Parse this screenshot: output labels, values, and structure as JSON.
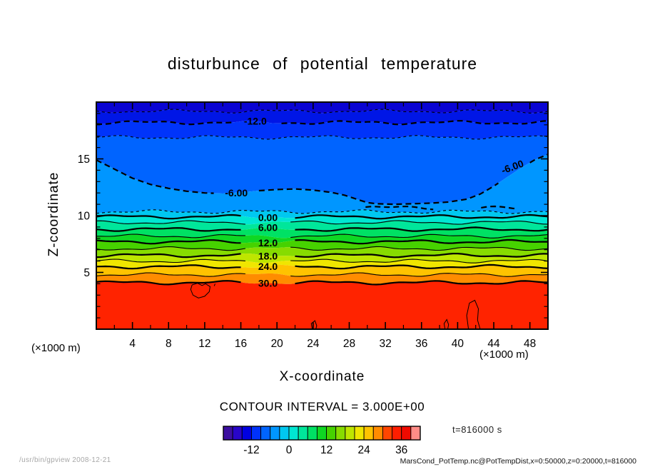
{
  "window": {
    "background": "#ffffff"
  },
  "footer": {
    "left": "/usr/bin/gpview  2008-12-21",
    "right": "MarsCond_PotTemp.nc@PotTempDist,x=0:50000,z=0:20000,t=816000"
  },
  "chart_data": {
    "type": "heatmap",
    "render": "filled-contour-map",
    "title": "disturbunce of potential temperature",
    "xlabel": "X-coordinate",
    "ylabel": "Z-coordinate",
    "x_unit_left": "(×1000 m)",
    "x_unit_right": "(×1000 m)",
    "time_label": "t=816000 s",
    "contour_interval": 3,
    "contour_interval_label": "CONTOUR INTERVAL = 3.000E+00",
    "xlim": [
      0,
      50
    ],
    "ylim": [
      0,
      20
    ],
    "xticks": [
      4,
      8,
      12,
      16,
      20,
      24,
      28,
      32,
      36,
      40,
      44,
      48
    ],
    "x_minor_step": 2,
    "yticks": [
      5,
      10,
      15
    ],
    "y_minor_step": 1,
    "contours": [
      {
        "value": -15,
        "z": 19.2,
        "thick": false,
        "dashed": true
      },
      {
        "value": -12,
        "z": 18.2,
        "thick": true,
        "dashed": true,
        "gaps": [
          [
            15.0,
            20.3
          ]
        ],
        "labels": [
          {
            "text": "-12.0",
            "x": 17.6
          }
        ]
      },
      {
        "value": -9,
        "z": 16.9,
        "thick": false,
        "dashed": true
      },
      {
        "value": -6,
        "thick": true,
        "dashed": true,
        "points": [
          [
            0,
            14.9
          ],
          [
            2,
            14.1
          ],
          [
            4,
            13.3
          ],
          [
            6,
            12.75
          ],
          [
            8,
            12.4
          ],
          [
            10,
            12.15
          ],
          [
            12,
            12.0
          ],
          [
            14,
            11.95
          ],
          [
            16,
            12.05
          ],
          [
            18,
            12.2
          ],
          [
            20,
            12.3
          ],
          [
            22,
            12.35
          ],
          [
            24,
            12.25
          ],
          [
            26,
            12.05
          ],
          [
            27.5,
            11.8
          ],
          [
            29,
            11.4
          ],
          [
            30,
            11.15
          ],
          [
            31,
            11.05
          ],
          [
            33,
            11.0
          ],
          [
            35,
            11.05
          ],
          [
            37,
            11.1
          ],
          [
            39,
            11.2
          ],
          [
            41,
            11.45
          ],
          [
            42.5,
            11.9
          ],
          [
            44,
            12.6
          ],
          [
            45.5,
            13.4
          ],
          [
            47,
            14.2
          ],
          [
            48.5,
            14.9
          ],
          [
            50,
            15.4
          ]
        ],
        "gaps": [
          [
            13.0,
            18.0
          ],
          [
            44.6,
            47.9
          ]
        ],
        "labels": [
          {
            "text": "-6.00",
            "x": 15.5
          },
          {
            "text": "-6.00",
            "x": 46.2,
            "angle": -20,
            "dz": 0.55
          }
        ]
      },
      {
        "value": -6.01,
        "z": 10.7,
        "thick": true,
        "dashed": true,
        "xrange": [
          29.8,
          37.6
        ]
      },
      {
        "value": -6.02,
        "z": 10.65,
        "thick": true,
        "dashed": true,
        "xrange": [
          42.6,
          46.6
        ]
      },
      {
        "value": -3,
        "z": 10.35,
        "thick": false,
        "dashed": true
      },
      {
        "value": 0,
        "z": 9.9,
        "thick": true,
        "dashed": false,
        "gaps": [
          [
            16.4,
            21.6
          ]
        ],
        "labels": [
          {
            "text": "0.00",
            "x": 19.0
          }
        ]
      },
      {
        "value": 3,
        "z": 9.4,
        "thick": false,
        "dashed": false,
        "gaps": [
          [
            16.6,
            21.4
          ]
        ]
      },
      {
        "value": 6,
        "z": 8.8,
        "thick": true,
        "dashed": false,
        "gaps": [
          [
            16.4,
            21.6
          ]
        ],
        "labels": [
          {
            "text": "6.00",
            "x": 19.0
          }
        ]
      },
      {
        "value": 9,
        "z": 8.2,
        "thick": false,
        "dashed": false,
        "gaps": [
          [
            16.6,
            21.4
          ]
        ]
      },
      {
        "value": 12,
        "z": 7.7,
        "thick": true,
        "dashed": false,
        "gaps": [
          [
            16.4,
            21.6
          ]
        ],
        "labels": [
          {
            "text": "12.0",
            "x": 19.0
          }
        ]
      },
      {
        "value": 15,
        "z": 7.1,
        "thick": false,
        "dashed": false,
        "gaps": [
          [
            16.6,
            21.4
          ]
        ]
      },
      {
        "value": 18,
        "z": 6.5,
        "thick": true,
        "dashed": false,
        "gaps": [
          [
            16.4,
            21.6
          ]
        ],
        "labels": [
          {
            "text": "18.0",
            "x": 19.0
          }
        ]
      },
      {
        "value": 21,
        "z": 6.0,
        "thick": false,
        "dashed": false,
        "gaps": [
          [
            16.6,
            21.4
          ]
        ]
      },
      {
        "value": 24,
        "z": 5.5,
        "thick": true,
        "dashed": false,
        "gaps": [
          [
            16.4,
            21.6
          ]
        ],
        "labels": [
          {
            "text": "24.0",
            "x": 19.0
          }
        ]
      },
      {
        "value": 27,
        "z": 4.8,
        "thick": false,
        "dashed": false,
        "gaps": [
          [
            16.6,
            21.4
          ]
        ]
      },
      {
        "value": 30,
        "z": 4.1,
        "thick": true,
        "dashed": false,
        "gaps": [
          [
            16.4,
            21.6
          ]
        ],
        "labels": [
          {
            "text": "30.0",
            "x": 19.0
          }
        ]
      }
    ],
    "bands": [
      {
        "top": "TOP",
        "bottom": -15,
        "color": "#0a04d2"
      },
      {
        "top": -15,
        "bottom": -12,
        "color": "#0016e6"
      },
      {
        "top": -12,
        "bottom": -9,
        "color": "#0034fa"
      },
      {
        "top": -9,
        "bottom": -6,
        "color": "#0064ff"
      },
      {
        "top": -6,
        "bottom": -3,
        "color": "#0096ff"
      },
      {
        "top": -3,
        "bottom": 0,
        "color": "#00c8f0"
      },
      {
        "top": 0,
        "bottom": 3,
        "color": "#00e6d2"
      },
      {
        "top": 3,
        "bottom": 6,
        "color": "#00e69b"
      },
      {
        "top": 6,
        "bottom": 9,
        "color": "#00e164"
      },
      {
        "top": 9,
        "bottom": 12,
        "color": "#0fd723"
      },
      {
        "top": 12,
        "bottom": 15,
        "color": "#46d200"
      },
      {
        "top": 15,
        "bottom": 18,
        "color": "#87dc00"
      },
      {
        "top": 18,
        "bottom": 21,
        "color": "#bee600"
      },
      {
        "top": 21,
        "bottom": 24,
        "color": "#f0e600"
      },
      {
        "top": 24,
        "bottom": 27,
        "color": "#ffc300"
      },
      {
        "top": 27,
        "bottom": 30,
        "color": "#ff8c00"
      },
      {
        "top": 30,
        "bottom": "BOT",
        "color": "#ff2300"
      }
    ],
    "blobs": [
      {
        "closed": true,
        "pts": [
          [
            10.6,
            3.9
          ],
          [
            11.2,
            4.05
          ],
          [
            11.7,
            3.85
          ],
          [
            12.1,
            4.0
          ],
          [
            12.6,
            3.75
          ],
          [
            12.5,
            3.3
          ],
          [
            12.0,
            2.9
          ],
          [
            11.3,
            2.75
          ],
          [
            10.7,
            3.0
          ],
          [
            10.45,
            3.5
          ]
        ]
      },
      {
        "closed": false,
        "pts": [
          [
            13.05,
            3.8
          ],
          [
            13.15,
            4.0
          ]
        ]
      },
      {
        "closed": false,
        "pts": [
          [
            41.2,
            0
          ],
          [
            41.0,
            1.2
          ],
          [
            41.3,
            2.3
          ],
          [
            41.9,
            2.55
          ],
          [
            42.3,
            1.8
          ],
          [
            42.2,
            0.8
          ],
          [
            42.5,
            0
          ]
        ]
      },
      {
        "closed": false,
        "pts": [
          [
            38.6,
            0
          ],
          [
            38.5,
            0.5
          ],
          [
            38.8,
            0.85
          ],
          [
            39.0,
            0.4
          ],
          [
            38.9,
            0
          ]
        ]
      },
      {
        "closed": false,
        "pts": [
          [
            23.9,
            0
          ],
          [
            23.8,
            0.5
          ],
          [
            24.2,
            0.75
          ],
          [
            24.4,
            0.3
          ],
          [
            24.3,
            0
          ]
        ]
      }
    ],
    "colorbar": {
      "min": -21,
      "max": 42,
      "interval": 3,
      "ticks": [
        -12,
        0,
        12,
        24,
        36
      ],
      "colors": [
        "#3c0fa0",
        "#2805c8",
        "#0000e1",
        "#0032fa",
        "#0064ff",
        "#0096ff",
        "#00c8f0",
        "#00e6d2",
        "#00e69b",
        "#00e164",
        "#0fd723",
        "#46d200",
        "#87dc00",
        "#bee600",
        "#f0e600",
        "#ffc300",
        "#ff8c00",
        "#ff4600",
        "#ff1e00",
        "#f00a00",
        "#ff8c87"
      ]
    }
  }
}
